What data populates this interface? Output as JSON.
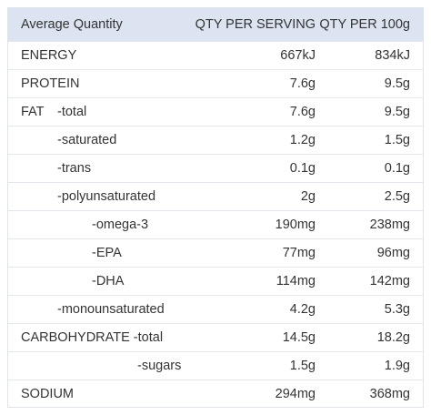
{
  "table": {
    "header": [
      "Average Quantity",
      "QTY PER SERVING",
      "QTY PER 100g"
    ],
    "rows": [
      {
        "label": "ENERGY",
        "serving": "667kJ",
        "per100g": "834kJ"
      },
      {
        "label": "PROTEIN",
        "serving": "7.6g",
        "per100g": "9.5g"
      },
      {
        "label": "FAT",
        "sublabel": "-total",
        "serving": "7.6g",
        "per100g": "9.5g"
      },
      {
        "label": "-saturated",
        "serving": "1.2g",
        "per100g": "1.5g"
      },
      {
        "label": "-trans",
        "serving": "0.1g",
        "per100g": "0.1g"
      },
      {
        "label": "-polyunsaturated",
        "serving": "2g",
        "per100g": "2.5g"
      },
      {
        "label": "-omega-3",
        "serving": "190mg",
        "per100g": "238mg"
      },
      {
        "label": "-EPA",
        "serving": "77mg",
        "per100g": "96mg"
      },
      {
        "label": "-DHA",
        "serving": "114mg",
        "per100g": "142mg"
      },
      {
        "label": "-monounsaturated",
        "serving": "4.2g",
        "per100g": "5.3g"
      },
      {
        "label": "CARBOHYDRATE -total",
        "serving": "14.5g",
        "per100g": "18.2g"
      },
      {
        "label": "-sugars",
        "serving": "1.5g",
        "per100g": "1.9g"
      },
      {
        "label": "SODIUM",
        "serving": "294mg",
        "per100g": "368mg"
      }
    ]
  }
}
